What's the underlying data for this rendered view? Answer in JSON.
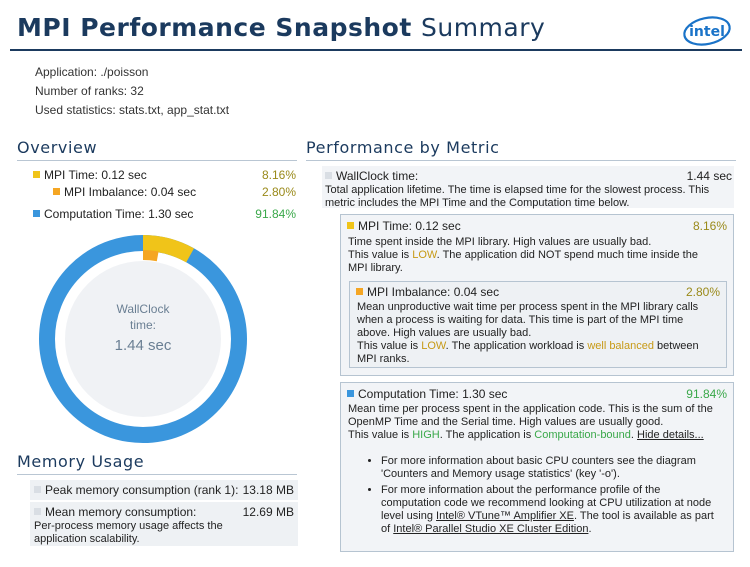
{
  "header": {
    "title_bold": "MPI Performance Snapshot",
    "title_light": "Summary",
    "logo_text": "intel"
  },
  "info": {
    "application_label": "Application:",
    "application_value": "./poisson",
    "ranks_label": "Number of ranks:",
    "ranks_value": "32",
    "stats_label": "Used statistics:",
    "stats_value": "stats.txt, app_stat.txt"
  },
  "overview": {
    "title": "Overview",
    "items": [
      {
        "label": "MPI Time:",
        "value": "0.12 sec",
        "pct": "8.16%",
        "color": "#f0c419"
      },
      {
        "label": "MPI Imbalance:",
        "value": "0.04 sec",
        "pct": "2.80%",
        "color": "#f5a623"
      },
      {
        "label": "Computation Time:",
        "value": "1.30 sec",
        "pct": "91.84%",
        "color": "#3a96dd"
      }
    ],
    "donut": {
      "center_label_line1": "WallClock",
      "center_label_line2": "time:",
      "center_value": "1.44 sec",
      "segments": [
        {
          "name": "MPI Time",
          "fraction": 0.0816,
          "color": "#f0c419"
        },
        {
          "name": "Computation Time",
          "fraction": 0.9184,
          "color": "#3a96dd"
        }
      ],
      "inner_segment": {
        "name": "MPI Imbalance",
        "fraction": 0.028,
        "color": "#f5a623"
      }
    }
  },
  "memory": {
    "title": "Memory Usage",
    "peak_label": "Peak memory consumption (rank 1):",
    "peak_value": "13.18 MB",
    "mean_label": "Mean memory consumption:",
    "mean_value": "12.69 MB",
    "mean_desc": "Per-process memory usage affects the application scalability."
  },
  "metrics": {
    "title": "Performance by Metric",
    "wallclock": {
      "label": "WallClock time:",
      "value": "1.44 sec",
      "desc": "Total application lifetime. The time is elapsed time for the slowest process. This metric includes the MPI Time and the Computation time below."
    },
    "mpi_time": {
      "label": "MPI Time:",
      "value": "0.12 sec",
      "pct": "8.16%",
      "desc1": "Time spent inside the MPI library. High values are usually bad.",
      "desc2_a": "This value is ",
      "desc2_b": "LOW",
      "desc2_c": ". The application did NOT spend much time inside the MPI library."
    },
    "mpi_imbalance": {
      "label": "MPI Imbalance:",
      "value": "0.04 sec",
      "pct": "2.80%",
      "desc1": "Mean unproductive wait time per process spent in the MPI library calls when a process is waiting for data. This time is part of the MPI time above. High values are usually bad.",
      "desc2_a": "This value is ",
      "desc2_b": "LOW",
      "desc2_c": ". The application workload is ",
      "desc2_d": "well balanced",
      "desc2_e": " between MPI ranks."
    },
    "computation": {
      "label": "Computation Time:",
      "value": "1.30 sec",
      "pct": "91.84%",
      "desc1": "Mean time per process spent in the application code. This is the sum of the OpenMP Time and the Serial time. High values are usually good.",
      "desc2_a": "This value is ",
      "desc2_b": "HIGH",
      "desc2_c": ". The application is ",
      "desc2_d": "Computation-bound",
      "desc2_e": ". ",
      "hide_link": "Hide details...",
      "bullet1": "For more information about basic CPU counters see the diagram 'Counters and Memory usage statistics' (key '-o').",
      "bullet2_a": "For more information about the performance profile of the computation code we recommend looking at CPU utilization at node level using ",
      "bullet2_link1": "Intel® VTune™ Amplifier XE",
      "bullet2_b": ". The tool is available as part of ",
      "bullet2_link2": "Intel® Parallel Studio XE Cluster Edition",
      "bullet2_c": "."
    }
  },
  "colors": {
    "accent_navy": "#1b3a5e",
    "mpi_yellow": "#f0c419",
    "imbalance_orange": "#f5a623",
    "computation_blue": "#3a96dd",
    "good_green": "#3aa84a",
    "low_amber": "#c79a16"
  }
}
